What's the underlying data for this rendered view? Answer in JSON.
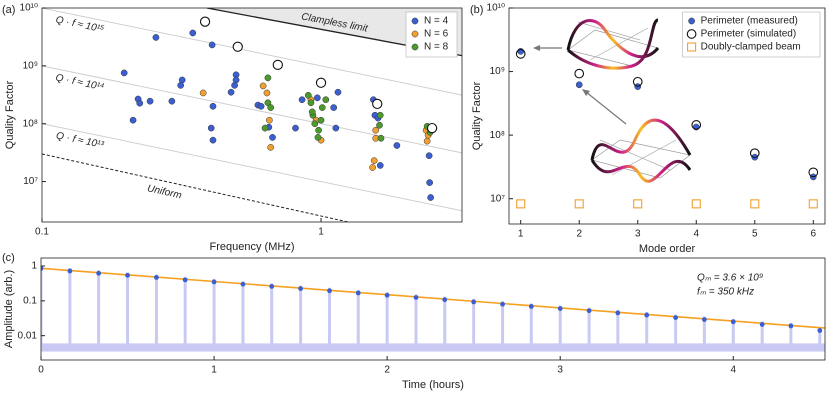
{
  "chart_data": [
    {
      "type": "scatter",
      "panel_label": "(a)",
      "x_label": "Frequency (MHz)",
      "y_label": "Quality Factor",
      "xscale": "log",
      "yscale": "log",
      "xlim": [
        0.1,
        3.2
      ],
      "ylim": [
        2000000,
        10000000000
      ],
      "xticks": [
        0.1,
        1
      ],
      "yticks": [
        {
          "value": 10000000,
          "label": "10⁷"
        },
        {
          "value": 100000000,
          "label": "10⁸"
        },
        {
          "value": 1000000000,
          "label": "10⁹"
        },
        {
          "value": 10000000000,
          "label": "10¹⁰"
        }
      ],
      "legend": "upper right",
      "series": [
        {
          "name": "N = 4",
          "color": "#3b5fd0",
          "marker": "circle",
          "x": [
            0.197,
            0.221,
            0.224,
            0.244,
            0.212,
            0.256,
            0.318,
            0.314,
            0.292,
            0.347,
            0.407,
            0.41,
            0.404,
            0.41,
            0.496,
            0.496,
            0.49,
            0.476,
            0.594,
            0.61,
            0.65,
            0.67,
            0.855,
            0.81,
            0.97,
            1.11,
            1.13,
            1.15,
            1.54,
            1.56,
            1.6,
            1.63,
            1.87,
            2.44,
            2.45,
            2.47,
            2.4
          ],
          "values": [
            755000000,
            267000000,
            226000000,
            245000000,
            115000000,
            3100000000,
            570000000,
            460000000,
            245000000,
            3700000000,
            2300000000,
            200000000,
            84000000,
            52000000,
            700000000,
            570000000,
            460000000,
            350000000,
            210000000,
            200000000,
            87000000,
            58000000,
            260000000,
            84000000,
            280000000,
            190000000,
            84000000,
            350000000,
            260000000,
            140000000,
            125000000,
            19000000,
            42000000,
            28000000,
            9600000,
            5300000,
            80000000
          ]
        },
        {
          "name": "N = 6",
          "color": "#f0a030",
          "marker": "circle",
          "x": [
            0.378,
            0.62,
            0.64,
            0.653,
            0.66,
            0.92,
            0.96,
            1.0,
            1.57,
            1.55,
            1.53,
            1.57,
            2.38,
            2.42,
            2.4
          ],
          "values": [
            340000000,
            450000000,
            340000000,
            115000000,
            39000000,
            260000000,
            115000000,
            52000000,
            77000000,
            23000000,
            17500000,
            56000000,
            77000000,
            63000000,
            50000000
          ]
        },
        {
          "name": "N = 8",
          "color": "#4c9a2e",
          "marker": "circle",
          "x": [
            0.645,
            0.645,
            0.66,
            0.63,
            0.9,
            0.92,
            0.935,
            0.95,
            0.98,
            1.01,
            0.975,
            1.04,
            1.0,
            0.93,
            1.6,
            1.63,
            1.62,
            1.64,
            2.4,
            2.46
          ],
          "values": [
            620000000,
            230000000,
            190000000,
            84000000,
            310000000,
            230000000,
            140000000,
            100000000,
            77000000,
            190000000,
            58000000,
            260000000,
            115000000,
            160000000,
            210000000,
            140000000,
            94000000,
            56000000,
            90000000,
            71000000
          ]
        }
      ],
      "open_points": {
        "x": [
          0.384,
          0.503,
          0.7,
          1.0,
          1.59,
          2.5
        ],
        "values": [
          5800000000,
          2140000000,
          1040000000,
          510000000,
          220000000,
          84000000
        ]
      },
      "qf_lines": [
        {
          "value": 1000000000000000,
          "label": "Q · f ≈ 10¹⁵"
        },
        {
          "value": 100000000000000,
          "label": "Q · f ≈ 10¹⁴"
        },
        {
          "value": 10000000000000,
          "label": "Q · f ≈ 10¹³"
        }
      ],
      "clampless_limit": {
        "label": "Clampless limit",
        "x": [
          0.39,
          3.2
        ],
        "values": [
          10000000000,
          1500000000
        ]
      },
      "uniform": {
        "label": "Uniform",
        "x": [
          0.1,
          1.25
        ],
        "values": [
          30000000,
          2000000
        ]
      }
    },
    {
      "type": "scatter",
      "panel_label": "(b)",
      "x_label": "Mode order",
      "y_label": "Quality Factor",
      "yscale": "log",
      "xlim": [
        0.8,
        6.2
      ],
      "ylim": [
        4000000,
        10000000000
      ],
      "xticks": [
        1,
        2,
        3,
        4,
        5,
        6
      ],
      "yticks": [
        {
          "value": 10000000,
          "label": "10⁷"
        },
        {
          "value": 100000000,
          "label": "10⁸"
        },
        {
          "value": 1000000000,
          "label": "10⁹"
        },
        {
          "value": 10000000000,
          "label": "10¹⁰"
        }
      ],
      "legend": "upper right",
      "x": [
        1,
        2,
        3,
        4,
        5,
        6
      ],
      "series": [
        {
          "name": "Perimeter (measured)",
          "color": "#3b5fd0",
          "marker": "circle",
          "values": [
            2080000000,
            620000000,
            580000000,
            134000000,
            45000000,
            22000000
          ]
        },
        {
          "name": "Perimeter (simulated)",
          "color": "#111111",
          "marker": "open-circle",
          "values": [
            1900000000,
            930000000,
            690000000,
            145000000,
            52000000,
            26000000
          ]
        },
        {
          "name": "Doubly-clamped beam",
          "color": "#f0a030",
          "marker": "square",
          "values": [
            8300000,
            8300000,
            8300000,
            8300000,
            8300000,
            8300000
          ]
        }
      ]
    },
    {
      "type": "line",
      "panel_label": "(c)",
      "x_label": "Time (hours)",
      "y_label": "Amplitude (arb.)",
      "yscale": "log",
      "xlim": [
        0,
        4.53
      ],
      "ylim": [
        0.002,
        1.7
      ],
      "xticks": [
        0,
        1,
        2,
        3,
        4
      ],
      "yticks": [
        0.01,
        0.1,
        1
      ],
      "color": "#3b5fd0",
      "pulse_color": "#c9caf3",
      "x": [
        0,
        0.167,
        0.333,
        0.5,
        0.667,
        0.833,
        1,
        1.167,
        1.333,
        1.5,
        1.667,
        1.833,
        2,
        2.167,
        2.333,
        2.5,
        2.667,
        2.833,
        3,
        3.167,
        3.333,
        3.5,
        3.667,
        3.833,
        4,
        4.167,
        4.333,
        4.5
      ],
      "values": [
        0.85,
        0.72,
        0.62,
        0.54,
        0.47,
        0.4,
        0.35,
        0.3,
        0.26,
        0.225,
        0.195,
        0.168,
        0.145,
        0.125,
        0.108,
        0.093,
        0.08,
        0.069,
        0.06,
        0.052,
        0.045,
        0.039,
        0.033,
        0.029,
        0.025,
        0.021,
        0.019,
        0.014
      ],
      "noise_floor": [
        0.0035,
        0.006
      ],
      "fit": {
        "color": "#f5a020",
        "x": [
          0,
          4.53
        ],
        "values": [
          0.86,
          0.0165
        ]
      },
      "annotations": [
        "Qₘ = 3.6 × 10⁹",
        "fₘ = 350 kHz"
      ]
    }
  ]
}
